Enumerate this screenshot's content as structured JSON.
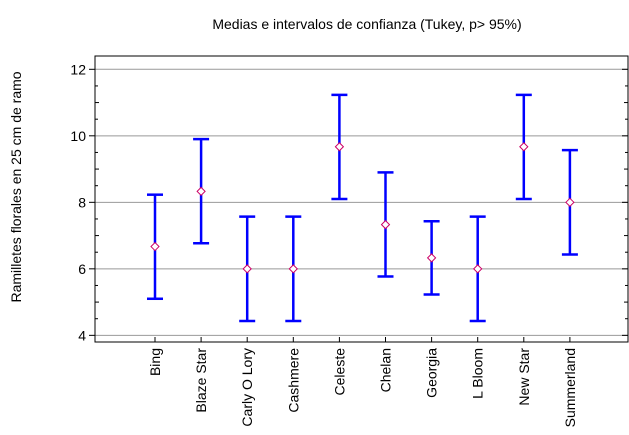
{
  "chart_data": {
    "type": "errorbar",
    "title": "Medias e intervalos de confianza (Tukey, p> 95%)",
    "xlabel": "",
    "ylabel": "Ramilletes florales en 25 cm de ramo",
    "ylim": [
      3.8,
      12.4
    ],
    "yticks": [
      4,
      6,
      8,
      10,
      12
    ],
    "grid": true,
    "legend": "none",
    "categories": [
      "Bing",
      "Blaze Star",
      "Carly O Lory",
      "Cashmere",
      "Celeste",
      "Chelan",
      "Georgia",
      "L Bloom",
      "New Star",
      "Summerland"
    ],
    "means": [
      6.67,
      8.33,
      6.0,
      6.0,
      9.67,
      7.33,
      6.33,
      6.0,
      9.67,
      8.0
    ],
    "lower": [
      5.1,
      6.77,
      4.43,
      4.43,
      8.1,
      5.77,
      5.23,
      4.43,
      8.1,
      6.43
    ],
    "upper": [
      8.23,
      9.9,
      7.57,
      7.57,
      11.23,
      8.9,
      7.43,
      7.57,
      11.23,
      9.57
    ],
    "colors": {
      "bars": "#0000ff",
      "marker": "#cc0066",
      "grid": "#999999",
      "axis": "#000000"
    }
  }
}
